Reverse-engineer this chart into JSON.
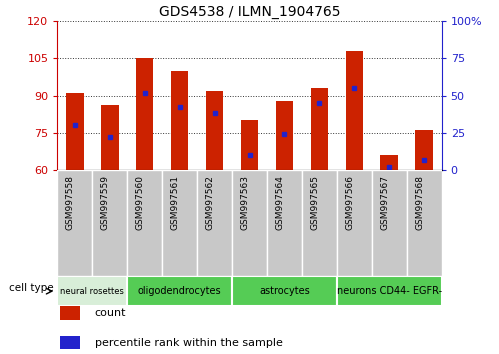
{
  "title": "GDS4538 / ILMN_1904765",
  "samples": [
    "GSM997558",
    "GSM997559",
    "GSM997560",
    "GSM997561",
    "GSM997562",
    "GSM997563",
    "GSM997564",
    "GSM997565",
    "GSM997566",
    "GSM997567",
    "GSM997568"
  ],
  "counts": [
    91,
    86,
    105,
    100,
    92,
    80,
    88,
    93,
    108,
    66,
    76
  ],
  "percentiles": [
    30,
    22,
    52,
    42,
    38,
    10,
    24,
    45,
    55,
    2,
    7
  ],
  "ylim_left": [
    60,
    120
  ],
  "ylim_right": [
    0,
    100
  ],
  "yticks_left": [
    60,
    75,
    90,
    105,
    120
  ],
  "yticks_right": [
    0,
    25,
    50,
    75,
    100
  ],
  "ytick_labels_right": [
    "0",
    "25",
    "50",
    "75",
    "100%"
  ],
  "bar_color": "#cc2200",
  "marker_color": "#2222cc",
  "bar_bottom": 60,
  "bar_width": 0.5,
  "cell_type_groups": [
    {
      "label": "neural rosettes",
      "start": 0,
      "end": 2,
      "color": "#d8eed8"
    },
    {
      "label": "oligodendrocytes",
      "start": 2,
      "end": 5,
      "color": "#55cc55"
    },
    {
      "label": "astrocytes",
      "start": 5,
      "end": 8,
      "color": "#55cc55"
    },
    {
      "label": "neurons CD44- EGFR-",
      "start": 8,
      "end": 11,
      "color": "#55cc55"
    }
  ],
  "xtick_bg_color": "#c8c8c8",
  "left_axis_color": "#cc0000",
  "right_axis_color": "#2222cc",
  "grid_color": "#333333",
  "legend_count_color": "#cc2200",
  "legend_pct_color": "#2222cc"
}
